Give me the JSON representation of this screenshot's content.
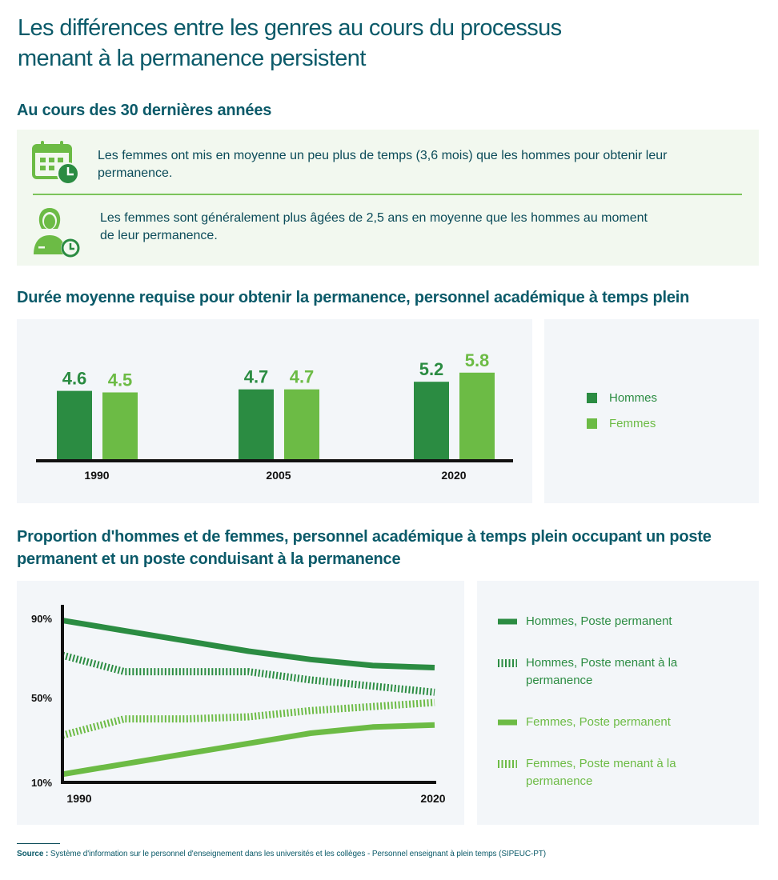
{
  "title": "Les différences entre les genres au cours du processus menant à la permanence persistent",
  "section1": {
    "heading": "Au cours des 30 dernières années",
    "facts": [
      {
        "icon": "calendar-clock-icon",
        "text": "Les femmes ont mis en moyenne un peu plus de temps (3,6 mois) que les hommes pour obtenir leur permanence."
      },
      {
        "icon": "woman-clock-icon",
        "text": "Les femmes sont généralement plus âgées de 2,5 ans en moyenne que les hommes au moment de leur permanence."
      }
    ]
  },
  "section2": {
    "heading": "Durée moyenne requise pour obtenir la permanence, personnel académique à temps plein"
  },
  "section3": {
    "heading": "Proportion d'hommes et de femmes, personnel académique à temps plein occupant un poste permanent et un poste conduisant à la permanence"
  },
  "colors": {
    "dark_green": "#2b8c42",
    "light_green": "#6cbb45",
    "title_teal": "#0b5a69"
  },
  "chart_data": [
    {
      "type": "bar",
      "categories": [
        "1990",
        "2005",
        "2020"
      ],
      "series": [
        {
          "name": "Hommes",
          "values": [
            4.6,
            4.7,
            5.2
          ],
          "color": "#2b8c42"
        },
        {
          "name": "Femmes",
          "values": [
            4.5,
            4.7,
            5.8
          ],
          "color": "#6cbb45"
        }
      ],
      "value_labels": [
        [
          "4.6",
          "4.7",
          "5.2"
        ],
        [
          "4.5",
          "4.7",
          "5.8"
        ]
      ],
      "legend_position": "right"
    },
    {
      "type": "line",
      "x": [
        1990,
        1995,
        2000,
        2005,
        2010,
        2015,
        2020
      ],
      "x_tick_labels": [
        "1990",
        "2020"
      ],
      "y_tick_labels": [
        "90%",
        "50%",
        "10%"
      ],
      "ylim": [
        10,
        90
      ],
      "series": [
        {
          "name": "Hommes, Poste permanent",
          "style": "solid",
          "color": "#2b8c42",
          "values": [
            89,
            84,
            79,
            74,
            70,
            67,
            66
          ]
        },
        {
          "name": "Hommes, Poste menant à la permanence",
          "style": "hatched",
          "color": "#2b8c42",
          "values": [
            72,
            64,
            64,
            64,
            60,
            57,
            54
          ]
        },
        {
          "name": "Femmes, Poste permanent",
          "style": "solid",
          "color": "#6cbb45",
          "values": [
            14,
            19,
            24,
            29,
            34,
            37,
            38
          ]
        },
        {
          "name": "Femmes, Poste menant à la permanence",
          "style": "hatched",
          "color": "#6cbb45",
          "values": [
            33,
            41,
            41,
            42,
            45,
            47,
            49
          ]
        }
      ],
      "legend_position": "right"
    }
  ],
  "source": {
    "label": "Source :",
    "text": "Système d'information sur le personnel d'enseignement dans les universités et les collèges - Personnel enseignant à plein temps (SIPEUC-PT)"
  }
}
